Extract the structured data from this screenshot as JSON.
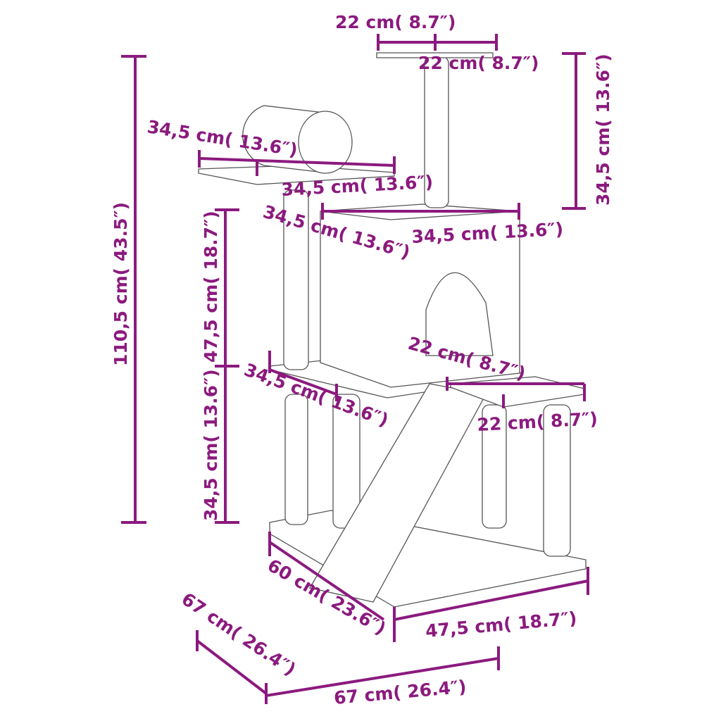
{
  "colors": {
    "dimension": "#8b1a7e",
    "outline": "#555555"
  },
  "labels": {
    "top_platform_width": "22 cm( 8.7″)",
    "top_platform_depth": "22 cm( 8.7″)",
    "top_post_height": "34,5 cm( 13.6″)",
    "tunnel_platform_depth": "34,5 cm( 13.6″)",
    "tunnel_platform_width": "34,5 cm( 13.6″)",
    "total_height": "110,5 cm( 43.5″)",
    "middle_height": "47,5 cm( 18.7″)",
    "house_depth": "34,5 cm( 13.6″)",
    "house_width": "34,5 cm( 13.6″)",
    "side_platform_depth": "22 cm( 8.7″)",
    "lower_platform_depth": "34,5 cm( 13.6″)",
    "side_platform_width": "22 cm( 8.7″)",
    "lower_height": "34,5 cm( 13.6″)",
    "base_depth": "60 cm( 23.6″)",
    "base_width": "47,5 cm( 18.7″)",
    "footprint_depth": "67 cm( 26.4″)",
    "footprint_width": "67 cm( 26.4″)"
  }
}
